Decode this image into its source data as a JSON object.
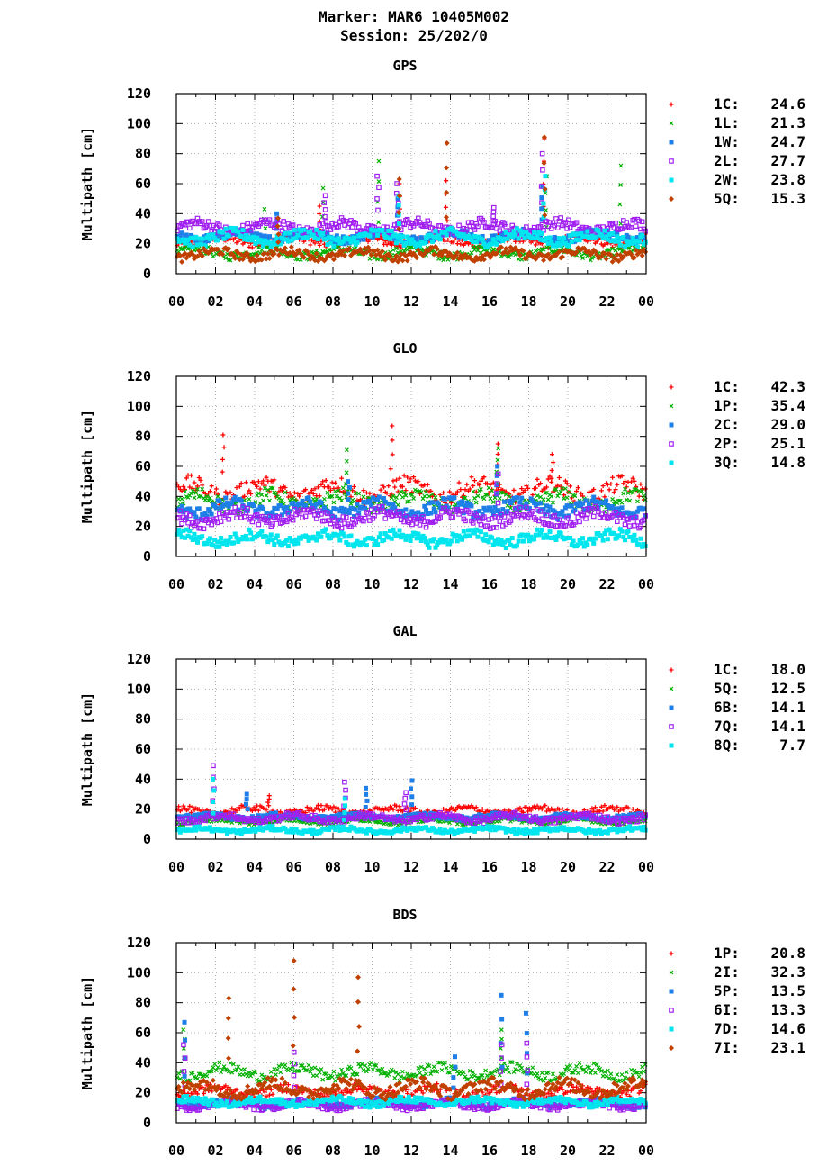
{
  "header": {
    "line1": "Marker: MAR6 10405M002",
    "line2": "Session: 25/202/0"
  },
  "chart_data": [
    {
      "type": "scatter",
      "title": "GPS",
      "ylabel": "Multipath [cm]",
      "ylim": [
        0,
        120
      ],
      "yticks": [
        "0",
        "20",
        "40",
        "60",
        "80",
        "100",
        "120"
      ],
      "xlim": [
        0,
        24
      ],
      "xticks": [
        "00",
        "02",
        "04",
        "06",
        "08",
        "10",
        "12",
        "14",
        "16",
        "18",
        "20",
        "22",
        "00"
      ],
      "grid": true,
      "legend_position": "right",
      "series": [
        {
          "code": "1C",
          "value": "24.6",
          "color": "#ff0000",
          "marker": "plus",
          "base": 22,
          "spread": 4,
          "spikes": [
            [
              7.3,
              45
            ],
            [
              11.4,
              60
            ],
            [
              13.8,
              62
            ],
            [
              18.8,
              90
            ]
          ]
        },
        {
          "code": "1L",
          "value": "21.3",
          "color": "#00b000",
          "marker": "cross",
          "base": 14,
          "spread": 4,
          "spikes": [
            [
              4.5,
              43
            ],
            [
              7.5,
              57
            ],
            [
              10.3,
              75
            ],
            [
              18.9,
              65
            ],
            [
              22.7,
              72
            ]
          ]
        },
        {
          "code": "1W",
          "value": "24.7",
          "color": "#1e7fe8",
          "marker": "square",
          "base": 25,
          "spread": 4,
          "spikes": [
            [
              5.1,
              40
            ],
            [
              11.3,
              50
            ],
            [
              18.7,
              58
            ]
          ]
        },
        {
          "code": "2L",
          "value": "27.7",
          "color": "#a020f0",
          "marker": "opensquare",
          "base": 31,
          "spread": 5,
          "spikes": [
            [
              7.6,
              52
            ],
            [
              10.3,
              65
            ],
            [
              11.3,
              60
            ],
            [
              16.2,
              44
            ],
            [
              18.7,
              80
            ]
          ]
        },
        {
          "code": "2W",
          "value": "23.8",
          "color": "#00e5ee",
          "marker": "square",
          "base": 24,
          "spread": 5,
          "spikes": [
            [
              11.4,
              52
            ],
            [
              18.8,
              65
            ]
          ]
        },
        {
          "code": "5Q",
          "value": "15.3",
          "color": "#c04000",
          "marker": "diamond",
          "base": 13,
          "spread": 4,
          "spikes": [
            [
              5.2,
              37
            ],
            [
              11.4,
              63
            ],
            [
              13.8,
              87
            ],
            [
              18.8,
              91
            ]
          ]
        }
      ]
    },
    {
      "type": "scatter",
      "title": "GLO",
      "ylabel": "Multipath [cm]",
      "ylim": [
        0,
        120
      ],
      "yticks": [
        "0",
        "20",
        "40",
        "60",
        "80",
        "100",
        "120"
      ],
      "xlim": [
        0,
        24
      ],
      "xticks": [
        "00",
        "02",
        "04",
        "06",
        "08",
        "10",
        "12",
        "14",
        "16",
        "18",
        "20",
        "22",
        "00"
      ],
      "grid": true,
      "legend_position": "right",
      "series": [
        {
          "code": "1C",
          "value": "42.3",
          "color": "#ff0000",
          "marker": "plus",
          "base": 44,
          "spread": 8,
          "spikes": [
            [
              2.4,
              81
            ],
            [
              11.0,
              87
            ],
            [
              16.4,
              75
            ],
            [
              19.2,
              68
            ]
          ]
        },
        {
          "code": "1P",
          "value": "35.4",
          "color": "#00b000",
          "marker": "cross",
          "base": 37,
          "spread": 7,
          "spikes": [
            [
              8.7,
              71
            ],
            [
              16.4,
              72
            ]
          ]
        },
        {
          "code": "2C",
          "value": "29.0",
          "color": "#1e7fe8",
          "marker": "square",
          "base": 32,
          "spread": 6,
          "spikes": [
            [
              8.8,
              50
            ],
            [
              16.4,
              60
            ]
          ]
        },
        {
          "code": "2P",
          "value": "25.1",
          "color": "#a020f0",
          "marker": "opensquare",
          "base": 26,
          "spread": 6,
          "spikes": [
            [
              16.4,
              55
            ]
          ]
        },
        {
          "code": "3Q",
          "value": "14.8",
          "color": "#00e5ee",
          "marker": "square",
          "base": 12,
          "spread": 5,
          "spikes": []
        }
      ]
    },
    {
      "type": "scatter",
      "title": "GAL",
      "ylabel": "Multipath [cm]",
      "ylim": [
        0,
        120
      ],
      "yticks": [
        "0",
        "20",
        "40",
        "60",
        "80",
        "100",
        "120"
      ],
      "xlim": [
        0,
        24
      ],
      "xticks": [
        "00",
        "02",
        "04",
        "06",
        "08",
        "10",
        "12",
        "14",
        "16",
        "18",
        "20",
        "22",
        "00"
      ],
      "grid": true,
      "legend_position": "right",
      "series": [
        {
          "code": "1C",
          "value": "18.0",
          "color": "#ff0000",
          "marker": "plus",
          "base": 19,
          "spread": 3,
          "spikes": [
            [
              4.7,
              29
            ]
          ]
        },
        {
          "code": "5Q",
          "value": "12.5",
          "color": "#00b000",
          "marker": "cross",
          "base": 12,
          "spread": 2,
          "spikes": []
        },
        {
          "code": "6B",
          "value": "14.1",
          "color": "#1e7fe8",
          "marker": "square",
          "base": 15,
          "spread": 2,
          "spikes": [
            [
              3.6,
              30
            ],
            [
              9.7,
              34
            ],
            [
              12.0,
              39
            ]
          ]
        },
        {
          "code": "7Q",
          "value": "14.1",
          "color": "#a020f0",
          "marker": "opensquare",
          "base": 14,
          "spread": 3,
          "spikes": [
            [
              1.9,
              49
            ],
            [
              8.6,
              38
            ],
            [
              11.7,
              31
            ]
          ]
        },
        {
          "code": "8Q",
          "value": "7.7",
          "color": "#00e5ee",
          "marker": "square",
          "base": 6,
          "spread": 2,
          "spikes": [
            [
              1.9,
              40
            ],
            [
              8.6,
              27
            ]
          ]
        }
      ]
    },
    {
      "type": "scatter",
      "title": "BDS",
      "ylabel": "Multipath [cm]",
      "ylim": [
        0,
        120
      ],
      "yticks": [
        "0",
        "20",
        "40",
        "60",
        "80",
        "100",
        "120"
      ],
      "xlim": [
        0,
        24
      ],
      "xticks": [
        "00",
        "02",
        "04",
        "06",
        "08",
        "10",
        "12",
        "14",
        "16",
        "18",
        "20",
        "22",
        "00"
      ],
      "grid": true,
      "legend_position": "right",
      "series": [
        {
          "code": "1P",
          "value": "20.8",
          "color": "#ff0000",
          "marker": "plus",
          "base": 21,
          "spread": 4,
          "spikes": []
        },
        {
          "code": "2I",
          "value": "32.3",
          "color": "#00b000",
          "marker": "cross",
          "base": 34,
          "spread": 5,
          "spikes": [
            [
              0.4,
              62
            ],
            [
              16.6,
              62
            ]
          ]
        },
        {
          "code": "5P",
          "value": "13.5",
          "color": "#1e7fe8",
          "marker": "square",
          "base": 13,
          "spread": 3,
          "spikes": [
            [
              0.4,
              67
            ],
            [
              14.2,
              44
            ],
            [
              16.6,
              85
            ],
            [
              17.9,
              73
            ]
          ]
        },
        {
          "code": "6I",
          "value": "13.3",
          "color": "#a020f0",
          "marker": "opensquare",
          "base": 12,
          "spread": 3,
          "spikes": [
            [
              0.4,
              52
            ],
            [
              6.0,
              47
            ],
            [
              16.6,
              52
            ],
            [
              17.9,
              53
            ]
          ]
        },
        {
          "code": "7D",
          "value": "14.6",
          "color": "#00e5ee",
          "marker": "square",
          "base": 14,
          "spread": 3,
          "spikes": []
        },
        {
          "code": "7I",
          "value": "23.1",
          "color": "#c04000",
          "marker": "diamond",
          "base": 23,
          "spread": 6,
          "spikes": [
            [
              2.7,
              83
            ],
            [
              6.0,
              108
            ],
            [
              9.3,
              97
            ]
          ]
        }
      ]
    }
  ]
}
